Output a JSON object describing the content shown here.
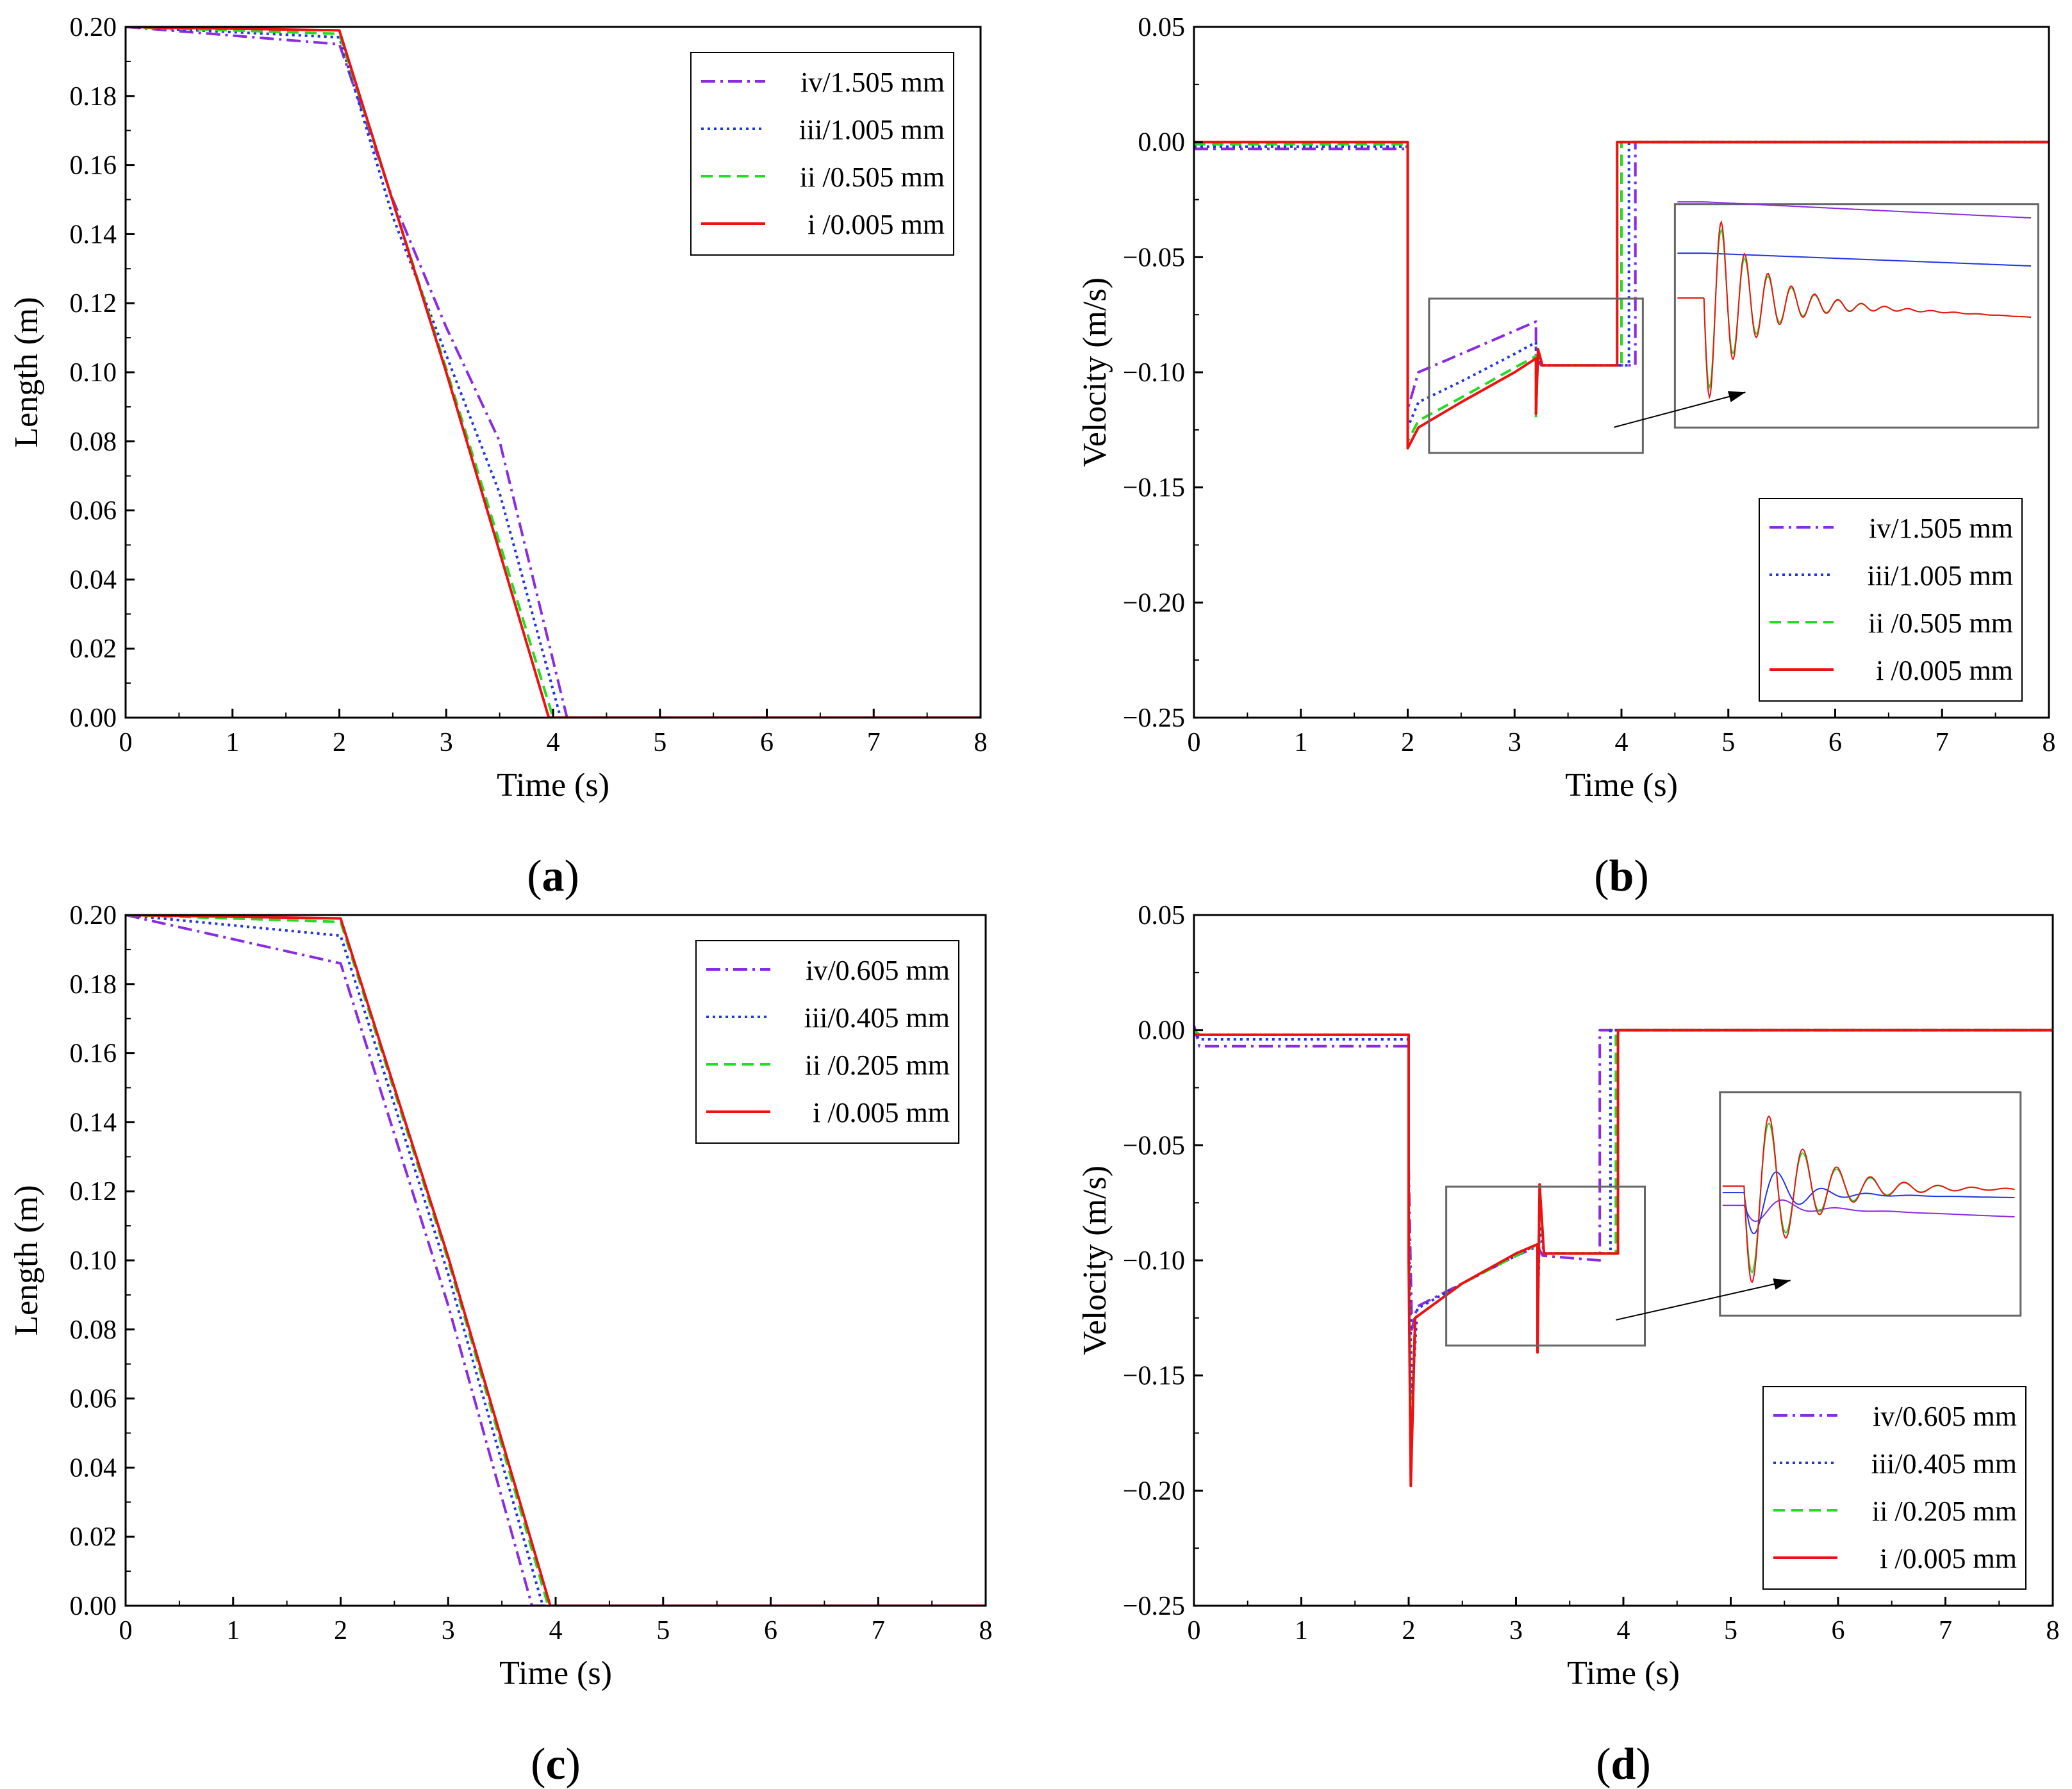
{
  "figure": {
    "colors": {
      "iv": "#8a2be2",
      "iii": "#1f35e0",
      "ii": "#22dd22",
      "i": "#ee1111",
      "axis": "#000000",
      "inset_frame": "#666666"
    }
  },
  "chart_data": [
    {
      "id": "a",
      "type": "line",
      "panel_label": "a",
      "xlabel": "Time (s)",
      "ylabel": "Length (m)",
      "xlim": [
        0,
        8
      ],
      "ylim": [
        0,
        0.2
      ],
      "x_ticks": [
        "0",
        "1",
        "2",
        "3",
        "4",
        "5",
        "6",
        "7",
        "8"
      ],
      "y_ticks": [
        "0.00",
        "0.02",
        "0.04",
        "0.06",
        "0.08",
        "0.10",
        "0.12",
        "0.14",
        "0.16",
        "0.18",
        "0.20"
      ],
      "legend_position": "top-right",
      "series": [
        {
          "key": "iv",
          "name": "iv/1.505 mm",
          "style": "dashdot",
          "points": [
            [
              0,
              0.2
            ],
            [
              2,
              0.195
            ],
            [
              2.5,
              0.15
            ],
            [
              3.0,
              0.113
            ],
            [
              3.5,
              0.08
            ],
            [
              4.13,
              0.0
            ],
            [
              8,
              0.0
            ]
          ]
        },
        {
          "key": "iii",
          "name": "iii/1.005 mm",
          "style": "dot",
          "points": [
            [
              0,
              0.2
            ],
            [
              2,
              0.197
            ],
            [
              2.5,
              0.145
            ],
            [
              3.5,
              0.065
            ],
            [
              4.07,
              0.0
            ],
            [
              8,
              0.0
            ]
          ]
        },
        {
          "key": "ii",
          "name": "ii /0.505 mm",
          "style": "dash",
          "points": [
            [
              0,
              0.2
            ],
            [
              2,
              0.198
            ],
            [
              3,
              0.101
            ],
            [
              4.0,
              0.0
            ],
            [
              8,
              0.0
            ]
          ]
        },
        {
          "key": "i",
          "name": "i /0.005 mm",
          "style": "solid",
          "points": [
            [
              0,
              0.2
            ],
            [
              2,
              0.199
            ],
            [
              3,
              0.1
            ],
            [
              3.96,
              0.0
            ],
            [
              8,
              0.0
            ]
          ]
        }
      ]
    },
    {
      "id": "b",
      "type": "line",
      "panel_label": "b",
      "xlabel": "Time (s)",
      "ylabel": "Velocity (m/s)",
      "xlim": [
        0,
        8
      ],
      "ylim": [
        -0.25,
        0.05
      ],
      "x_ticks": [
        "0",
        "1",
        "2",
        "3",
        "4",
        "5",
        "6",
        "7",
        "8"
      ],
      "y_ticks": [
        "−0.25",
        "−0.20",
        "−0.15",
        "−0.10",
        "−0.05",
        "0.00",
        "0.05"
      ],
      "legend_position": "bottom-right",
      "inset": {
        "zoom_x": [
          2.2,
          4.2
        ],
        "zoom_y": [
          -0.135,
          -0.068
        ],
        "box_x": [
          4.5,
          7.9
        ],
        "box_y": [
          -0.124,
          -0.027
        ]
      },
      "series": [
        {
          "key": "iv",
          "name": "iv/1.505 mm",
          "style": "dashdot",
          "points": [
            [
              0,
              -0.003
            ],
            [
              2,
              -0.003
            ],
            [
              2.0,
              -0.116
            ],
            [
              2.1,
              -0.1
            ],
            [
              2.5,
              -0.092
            ],
            [
              3.0,
              -0.082
            ],
            [
              3.2,
              -0.078
            ],
            [
              3.2,
              -0.094
            ],
            [
              3.25,
              -0.097
            ],
            [
              4.13,
              -0.097
            ],
            [
              4.13,
              0.0
            ],
            [
              8,
              0.0
            ]
          ]
        },
        {
          "key": "iii",
          "name": "iii/1.005 mm",
          "style": "dot",
          "points": [
            [
              0,
              -0.002
            ],
            [
              2,
              -0.002
            ],
            [
              2.0,
              -0.124
            ],
            [
              2.1,
              -0.113
            ],
            [
              2.5,
              -0.104
            ],
            [
              3.0,
              -0.092
            ],
            [
              3.2,
              -0.087
            ],
            [
              3.2,
              -0.094
            ],
            [
              3.25,
              -0.097
            ],
            [
              4.07,
              -0.097
            ],
            [
              4.07,
              0.0
            ],
            [
              8,
              0.0
            ]
          ]
        },
        {
          "key": "ii",
          "name": "ii /0.505 mm",
          "style": "dash",
          "points": [
            [
              0,
              -0.001
            ],
            [
              2,
              -0.001
            ],
            [
              2.0,
              -0.13
            ],
            [
              2.1,
              -0.121
            ],
            [
              2.5,
              -0.111
            ],
            [
              3.0,
              -0.098
            ],
            [
              3.2,
              -0.093
            ],
            [
              3.2,
              -0.12
            ],
            [
              3.22,
              -0.09
            ],
            [
              3.26,
              -0.097
            ],
            [
              4.0,
              -0.097
            ],
            [
              4.0,
              0.0
            ],
            [
              8,
              0.0
            ]
          ]
        },
        {
          "key": "i",
          "name": "i /0.005 mm",
          "style": "solid",
          "points": [
            [
              0,
              0.0
            ],
            [
              2,
              0.0
            ],
            [
              2.0,
              -0.133
            ],
            [
              2.1,
              -0.124
            ],
            [
              2.5,
              -0.113
            ],
            [
              3.0,
              -0.1
            ],
            [
              3.2,
              -0.094
            ],
            [
              3.2,
              -0.118
            ],
            [
              3.22,
              -0.09
            ],
            [
              3.26,
              -0.097
            ],
            [
              3.96,
              -0.097
            ],
            [
              3.96,
              0.0
            ],
            [
              8,
              0.0
            ]
          ]
        }
      ]
    },
    {
      "id": "c",
      "type": "line",
      "panel_label": "c",
      "xlabel": "Time (s)",
      "ylabel": "Length (m)",
      "xlim": [
        0,
        8
      ],
      "ylim": [
        0,
        0.2
      ],
      "x_ticks": [
        "0",
        "1",
        "2",
        "3",
        "4",
        "5",
        "6",
        "7",
        "8"
      ],
      "y_ticks": [
        "0.00",
        "0.02",
        "0.04",
        "0.06",
        "0.08",
        "0.10",
        "0.12",
        "0.14",
        "0.16",
        "0.18",
        "0.20"
      ],
      "legend_position": "top-right",
      "series": [
        {
          "key": "iv",
          "name": "iv/0.605 mm",
          "style": "dashdot",
          "points": [
            [
              0,
              0.2
            ],
            [
              2,
              0.186
            ],
            [
              3,
              0.087
            ],
            [
              3.78,
              0.0
            ],
            [
              8,
              0.0
            ]
          ]
        },
        {
          "key": "iii",
          "name": "iii/0.405 mm",
          "style": "dot",
          "points": [
            [
              0,
              0.2
            ],
            [
              2,
              0.194
            ],
            [
              3,
              0.096
            ],
            [
              3.88,
              0.0
            ],
            [
              8,
              0.0
            ]
          ]
        },
        {
          "key": "ii",
          "name": "ii /0.205 mm",
          "style": "dash",
          "points": [
            [
              0,
              0.2
            ],
            [
              2,
              0.198
            ],
            [
              3,
              0.1
            ],
            [
              3.93,
              0.0
            ],
            [
              8,
              0.0
            ]
          ]
        },
        {
          "key": "i",
          "name": "i /0.005 mm",
          "style": "solid",
          "points": [
            [
              0,
              0.2
            ],
            [
              2,
              0.199
            ],
            [
              3,
              0.101
            ],
            [
              3.95,
              0.0
            ],
            [
              8,
              0.0
            ]
          ]
        }
      ]
    },
    {
      "id": "d",
      "type": "line",
      "panel_label": "d",
      "xlabel": "Time (s)",
      "ylabel": "Velocity (m/s)",
      "xlim": [
        0,
        8
      ],
      "ylim": [
        -0.25,
        0.05
      ],
      "x_ticks": [
        "0",
        "1",
        "2",
        "3",
        "4",
        "5",
        "6",
        "7",
        "8"
      ],
      "y_ticks": [
        "−0.25",
        "−0.20",
        "−0.15",
        "−0.10",
        "−0.05",
        "0.00",
        "0.05"
      ],
      "legend_position": "bottom-right",
      "inset": {
        "zoom_x": [
          2.35,
          4.2
        ],
        "zoom_y": [
          -0.137,
          -0.068
        ],
        "box_x": [
          4.9,
          7.7
        ],
        "box_y": [
          -0.124,
          -0.027
        ]
      },
      "series": [
        {
          "key": "iv",
          "name": "iv/0.605 mm",
          "style": "dashdot",
          "points": [
            [
              0,
              0.002
            ],
            [
              0.05,
              -0.007
            ],
            [
              2,
              -0.007
            ],
            [
              2.0,
              -0.06
            ],
            [
              2.03,
              -0.13
            ],
            [
              2.08,
              -0.12
            ],
            [
              2.5,
              -0.11
            ],
            [
              3.0,
              -0.098
            ],
            [
              3.2,
              -0.094
            ],
            [
              3.25,
              -0.098
            ],
            [
              3.78,
              -0.1
            ],
            [
              3.78,
              0.0
            ],
            [
              8,
              0.0
            ]
          ]
        },
        {
          "key": "iii",
          "name": "iii/0.405 mm",
          "style": "dot",
          "points": [
            [
              0,
              0.0
            ],
            [
              0.05,
              -0.004
            ],
            [
              2,
              -0.004
            ],
            [
              2.0,
              -0.08
            ],
            [
              2.03,
              -0.16
            ],
            [
              2.08,
              -0.121
            ],
            [
              2.5,
              -0.11
            ],
            [
              3.0,
              -0.098
            ],
            [
              3.2,
              -0.093
            ],
            [
              3.2,
              -0.128
            ],
            [
              3.22,
              -0.085
            ],
            [
              3.26,
              -0.097
            ],
            [
              3.88,
              -0.097
            ],
            [
              3.88,
              0.0
            ],
            [
              8,
              0.0
            ]
          ]
        },
        {
          "key": "ii",
          "name": "ii /0.205 mm",
          "style": "dash",
          "points": [
            [
              0,
              0.0
            ],
            [
              0.05,
              -0.002
            ],
            [
              2,
              -0.002
            ],
            [
              2.0,
              -0.09
            ],
            [
              2.02,
              -0.19
            ],
            [
              2.06,
              -0.125
            ],
            [
              2.5,
              -0.11
            ],
            [
              3.0,
              -0.098
            ],
            [
              3.2,
              -0.093
            ],
            [
              3.2,
              -0.13
            ],
            [
              3.22,
              -0.07
            ],
            [
              3.26,
              -0.097
            ],
            [
              3.93,
              -0.097
            ],
            [
              3.93,
              0.0
            ],
            [
              8,
              0.0
            ]
          ]
        },
        {
          "key": "i",
          "name": "i /0.005 mm",
          "style": "solid",
          "points": [
            [
              0,
              -0.002
            ],
            [
              2,
              -0.002
            ],
            [
              2.0,
              -0.1
            ],
            [
              2.02,
              -0.198
            ],
            [
              2.06,
              -0.125
            ],
            [
              2.5,
              -0.11
            ],
            [
              3.0,
              -0.097
            ],
            [
              3.2,
              -0.093
            ],
            [
              3.2,
              -0.14
            ],
            [
              3.22,
              -0.067
            ],
            [
              3.26,
              -0.097
            ],
            [
              3.95,
              -0.097
            ],
            [
              3.95,
              0.0
            ],
            [
              8,
              0.0
            ]
          ]
        }
      ]
    }
  ]
}
